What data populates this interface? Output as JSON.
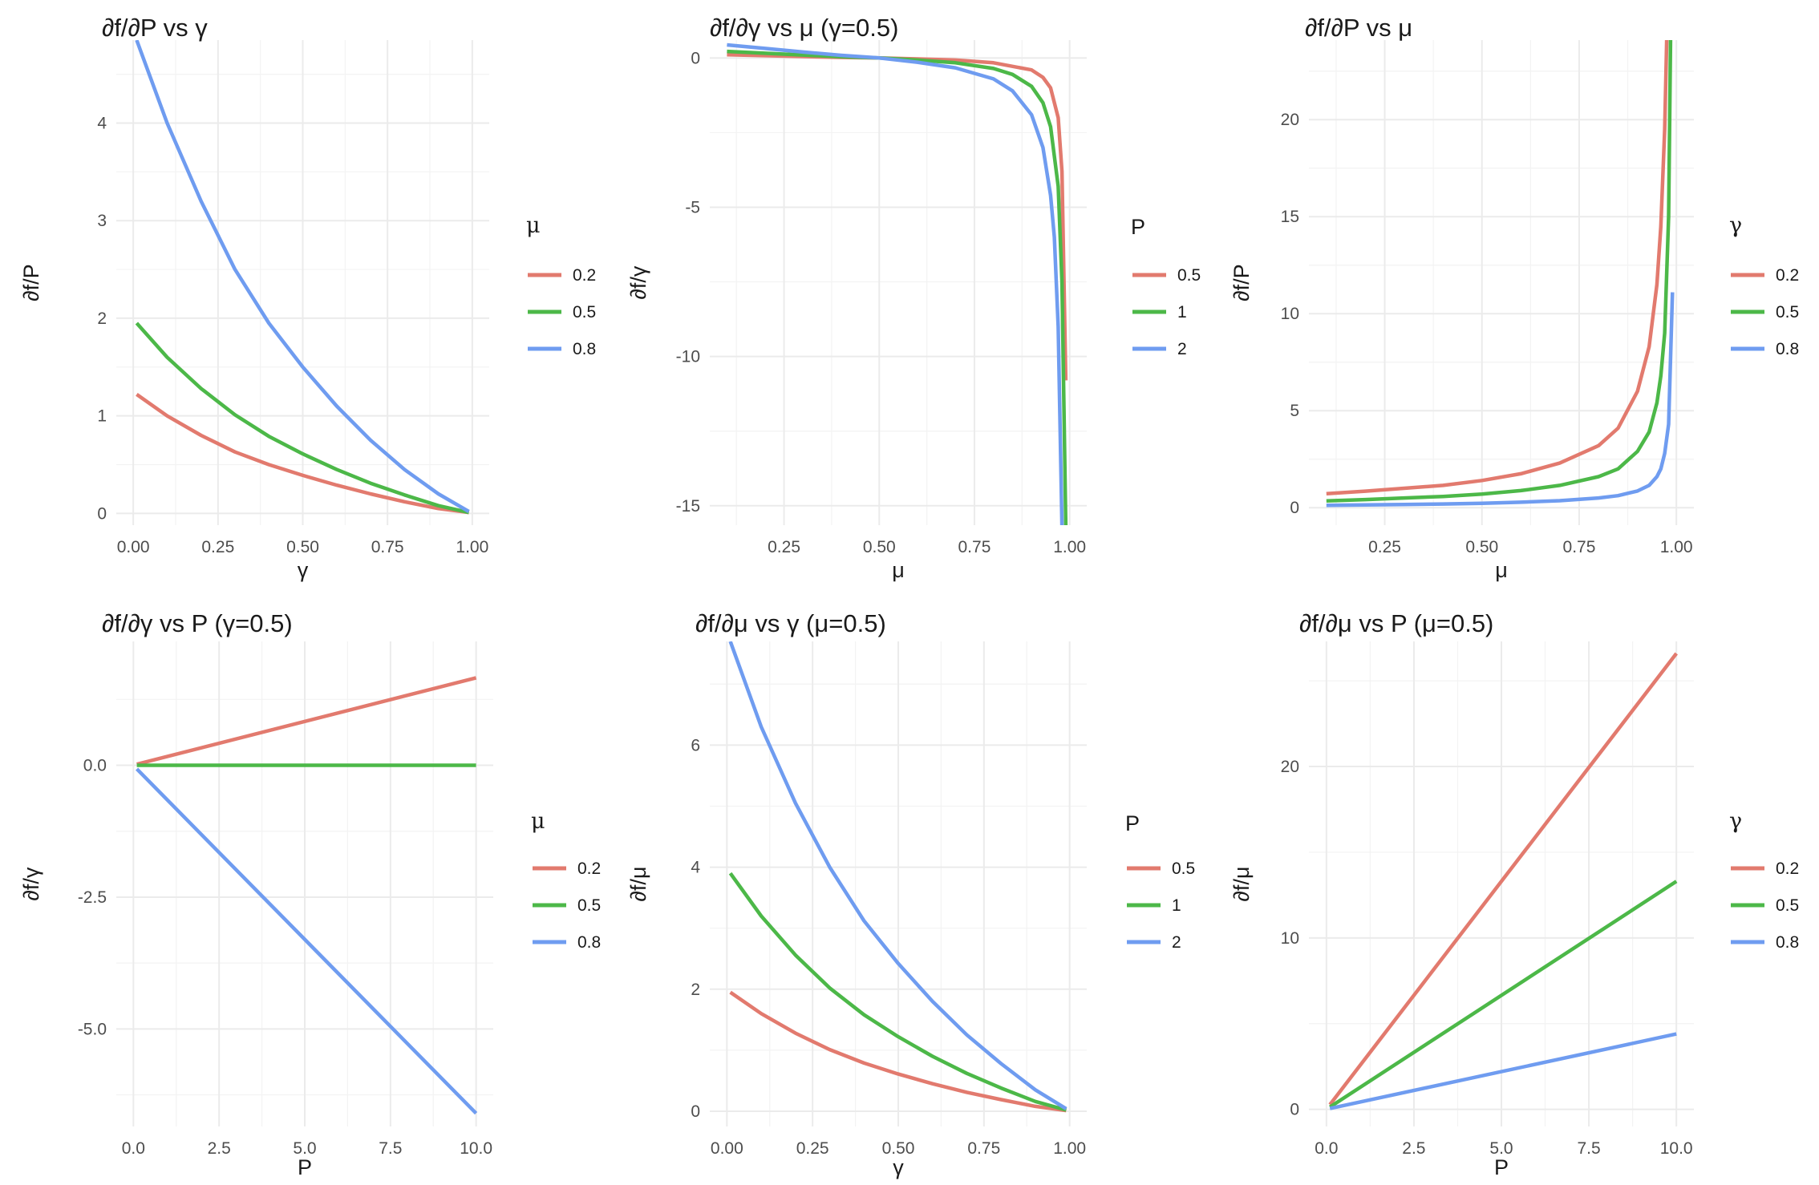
{
  "colors": {
    "red": "#E27A6E",
    "green": "#4CB848",
    "blue": "#6F9CF0"
  },
  "chart_data": [
    {
      "type": "line",
      "title": "∂f/∂P vs γ",
      "xlabel": "γ",
      "ylabel": "∂f/P",
      "xlim": [
        -0.05,
        1.05
      ],
      "ylim": [
        -0.12,
        4.85
      ],
      "xticks": [
        "0.00",
        "0.25",
        "0.50",
        "0.75",
        "1.00"
      ],
      "yticks": [
        "0",
        "1",
        "2",
        "3",
        "4"
      ],
      "legend": {
        "title": "μ",
        "position": "right"
      },
      "series": [
        {
          "name": "0.2",
          "color": "#E27A6E",
          "x": [
            0.01,
            0.1,
            0.2,
            0.3,
            0.4,
            0.5,
            0.6,
            0.7,
            0.8,
            0.9,
            0.99
          ],
          "y": [
            1.22,
            1.0,
            0.8,
            0.63,
            0.5,
            0.39,
            0.29,
            0.2,
            0.12,
            0.05,
            0.01
          ]
        },
        {
          "name": "0.5",
          "color": "#4CB848",
          "x": [
            0.01,
            0.1,
            0.2,
            0.3,
            0.4,
            0.5,
            0.6,
            0.7,
            0.8,
            0.9,
            0.99
          ],
          "y": [
            1.95,
            1.6,
            1.28,
            1.01,
            0.79,
            0.61,
            0.45,
            0.31,
            0.19,
            0.08,
            0.01
          ]
        },
        {
          "name": "0.8",
          "color": "#6F9CF0",
          "x": [
            0.01,
            0.1,
            0.2,
            0.3,
            0.4,
            0.5,
            0.6,
            0.7,
            0.8,
            0.9,
            0.99
          ],
          "y": [
            4.85,
            4.0,
            3.2,
            2.5,
            1.95,
            1.5,
            1.1,
            0.75,
            0.45,
            0.2,
            0.02
          ]
        }
      ]
    },
    {
      "type": "line",
      "title": "∂f/∂γ vs μ (γ=0.5)",
      "xlabel": "μ",
      "ylabel": "∂f/γ",
      "xlim": [
        0.055,
        1.045
      ],
      "ylim": [
        -15.65,
        0.6
      ],
      "xticks": [
        "0.25",
        "0.50",
        "0.75",
        "1.00"
      ],
      "yticks": [
        "0",
        "-5",
        "-10",
        "-15"
      ],
      "legend": {
        "title": "P",
        "position": "right"
      },
      "series": [
        {
          "name": "0.5",
          "color": "#E27A6E",
          "x": [
            0.1,
            0.2,
            0.3,
            0.4,
            0.5,
            0.6,
            0.7,
            0.8,
            0.9,
            0.93,
            0.95,
            0.97,
            0.98,
            0.99
          ],
          "y": [
            0.11,
            0.08,
            0.05,
            0.02,
            0.0,
            -0.03,
            -0.07,
            -0.16,
            -0.4,
            -0.65,
            -1.0,
            -2.0,
            -3.8,
            -10.8
          ]
        },
        {
          "name": "1",
          "color": "#4CB848",
          "x": [
            0.1,
            0.2,
            0.3,
            0.4,
            0.5,
            0.6,
            0.7,
            0.8,
            0.85,
            0.9,
            0.93,
            0.95,
            0.97,
            0.98,
            0.99
          ],
          "y": [
            0.22,
            0.16,
            0.1,
            0.04,
            0.0,
            -0.07,
            -0.16,
            -0.35,
            -0.55,
            -0.95,
            -1.5,
            -2.3,
            -4.3,
            -7.5,
            -15.7
          ]
        },
        {
          "name": "2",
          "color": "#6F9CF0",
          "x": [
            0.1,
            0.2,
            0.3,
            0.4,
            0.5,
            0.6,
            0.7,
            0.8,
            0.85,
            0.9,
            0.93,
            0.95,
            0.96,
            0.97,
            0.98
          ],
          "y": [
            0.44,
            0.32,
            0.2,
            0.09,
            0.0,
            -0.14,
            -0.33,
            -0.7,
            -1.1,
            -1.9,
            -3.0,
            -4.6,
            -6.0,
            -9.0,
            -15.7
          ]
        }
      ]
    },
    {
      "type": "line",
      "title": "∂f/∂P vs μ",
      "xlabel": "μ",
      "ylabel": "∂f/P",
      "xlim": [
        0.055,
        1.045
      ],
      "ylim": [
        -0.9,
        24.1
      ],
      "xticks": [
        "0.25",
        "0.50",
        "0.75",
        "1.00"
      ],
      "yticks": [
        "0",
        "5",
        "10",
        "15",
        "20"
      ],
      "legend": {
        "title": "γ",
        "position": "right"
      },
      "series": [
        {
          "name": "0.2",
          "color": "#E27A6E",
          "x": [
            0.1,
            0.2,
            0.3,
            0.4,
            0.5,
            0.6,
            0.7,
            0.8,
            0.85,
            0.9,
            0.93,
            0.95,
            0.96,
            0.97,
            0.975
          ],
          "y": [
            0.72,
            0.85,
            1.0,
            1.15,
            1.4,
            1.75,
            2.3,
            3.2,
            4.1,
            6.0,
            8.3,
            11.5,
            14.5,
            19.5,
            24.1
          ]
        },
        {
          "name": "0.5",
          "color": "#4CB848",
          "x": [
            0.1,
            0.2,
            0.3,
            0.4,
            0.5,
            0.6,
            0.7,
            0.8,
            0.85,
            0.9,
            0.93,
            0.95,
            0.96,
            0.97,
            0.98,
            0.985
          ],
          "y": [
            0.35,
            0.42,
            0.5,
            0.58,
            0.7,
            0.88,
            1.15,
            1.6,
            2.0,
            2.9,
            3.9,
            5.4,
            6.8,
            9.0,
            15.0,
            24.1
          ]
        },
        {
          "name": "0.8",
          "color": "#6F9CF0",
          "x": [
            0.1,
            0.2,
            0.3,
            0.4,
            0.5,
            0.6,
            0.7,
            0.8,
            0.85,
            0.9,
            0.93,
            0.95,
            0.96,
            0.97,
            0.98,
            0.99
          ],
          "y": [
            0.12,
            0.14,
            0.16,
            0.19,
            0.23,
            0.28,
            0.36,
            0.5,
            0.62,
            0.86,
            1.15,
            1.6,
            2.0,
            2.8,
            4.3,
            11.1
          ]
        }
      ]
    },
    {
      "type": "line",
      "title": "∂f/∂γ vs P (γ=0.5)",
      "xlabel": "P",
      "ylabel": "∂f/γ",
      "xlim": [
        -0.5,
        10.5
      ],
      "ylim": [
        -6.85,
        2.35
      ],
      "xticks": [
        "0.0",
        "2.5",
        "5.0",
        "7.5",
        "10.0"
      ],
      "yticks": [
        "0.0",
        "-2.5",
        "-5.0"
      ],
      "legend": {
        "title": "μ",
        "position": "right"
      },
      "series": [
        {
          "name": "0.2",
          "color": "#E27A6E",
          "x": [
            0.1,
            10
          ],
          "y": [
            0.02,
            1.66
          ]
        },
        {
          "name": "0.5",
          "color": "#4CB848",
          "x": [
            0.1,
            10
          ],
          "y": [
            0.0,
            0.0
          ]
        },
        {
          "name": "0.8",
          "color": "#6F9CF0",
          "x": [
            0.1,
            10
          ],
          "y": [
            -0.07,
            -6.6
          ]
        }
      ]
    },
    {
      "type": "line",
      "title": "∂f/∂μ vs γ (μ=0.5)",
      "xlabel": "γ",
      "ylabel": "∂f/μ",
      "xlim": [
        -0.05,
        1.05
      ],
      "ylim": [
        -0.25,
        7.7
      ],
      "xticks": [
        "0.00",
        "0.25",
        "0.50",
        "0.75",
        "1.00"
      ],
      "yticks": [
        "0",
        "2",
        "4",
        "6"
      ],
      "legend": {
        "title": "P",
        "position": "right"
      },
      "series": [
        {
          "name": "0.5",
          "color": "#E27A6E",
          "x": [
            0.01,
            0.1,
            0.2,
            0.3,
            0.4,
            0.5,
            0.6,
            0.7,
            0.8,
            0.9,
            0.99
          ],
          "y": [
            1.95,
            1.6,
            1.28,
            1.01,
            0.79,
            0.61,
            0.45,
            0.31,
            0.19,
            0.08,
            0.01
          ]
        },
        {
          "name": "1",
          "color": "#4CB848",
          "x": [
            0.01,
            0.1,
            0.2,
            0.3,
            0.4,
            0.5,
            0.6,
            0.7,
            0.8,
            0.9,
            0.99
          ],
          "y": [
            3.9,
            3.2,
            2.56,
            2.02,
            1.58,
            1.22,
            0.9,
            0.62,
            0.38,
            0.16,
            0.02
          ]
        },
        {
          "name": "2",
          "color": "#6F9CF0",
          "x": [
            0.01,
            0.1,
            0.2,
            0.3,
            0.4,
            0.5,
            0.6,
            0.7,
            0.8,
            0.9,
            0.99
          ],
          "y": [
            7.7,
            6.3,
            5.05,
            4.0,
            3.12,
            2.42,
            1.8,
            1.25,
            0.78,
            0.35,
            0.04
          ]
        }
      ]
    },
    {
      "type": "line",
      "title": "∂f/∂μ vs P (μ=0.5)",
      "xlabel": "P",
      "ylabel": "∂f/μ",
      "xlim": [
        -0.5,
        10.5
      ],
      "ylim": [
        -1.0,
        27.3
      ],
      "xticks": [
        "0.0",
        "2.5",
        "5.0",
        "7.5",
        "10.0"
      ],
      "yticks": [
        "0",
        "10",
        "20"
      ],
      "legend": {
        "title": "γ",
        "position": "right"
      },
      "series": [
        {
          "name": "0.2",
          "color": "#E27A6E",
          "x": [
            0.1,
            10
          ],
          "y": [
            0.27,
            26.6
          ]
        },
        {
          "name": "0.5",
          "color": "#4CB848",
          "x": [
            0.1,
            10
          ],
          "y": [
            0.13,
            13.3
          ]
        },
        {
          "name": "0.8",
          "color": "#6F9CF0",
          "x": [
            0.1,
            10
          ],
          "y": [
            0.05,
            4.4
          ]
        }
      ]
    }
  ]
}
